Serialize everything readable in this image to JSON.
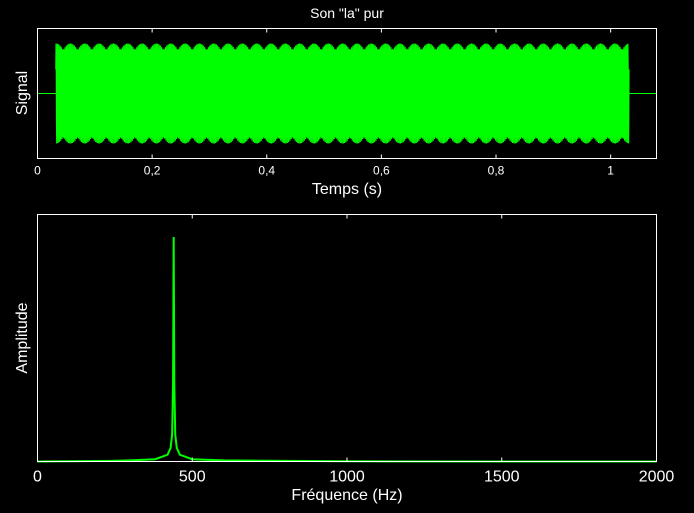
{
  "chart_data": [
    {
      "type": "line",
      "title": "Son \"la\" pur",
      "xlabel": "Temps (s)",
      "ylabel": "Signal",
      "xlim": [
        0,
        1.08
      ],
      "ylim": [
        -1.3,
        1.3
      ],
      "xticks": [
        0,
        0.2,
        0.4,
        0.6,
        0.8,
        1
      ],
      "xtick_labels": [
        "0",
        "0,2",
        "0,4",
        "0,6",
        "0,8",
        "1"
      ],
      "grid": false,
      "line_color": "#00ff00",
      "series": [
        {
          "frequency_hz": 440,
          "amplitude": 1,
          "start_s": 0.032,
          "end_s": 1.032,
          "x": [
            0,
            0.032,
            0.032,
            1.032,
            1.032,
            1.08
          ],
          "y": [
            0,
            0,
            1,
            1,
            0,
            0
          ]
        }
      ]
    },
    {
      "type": "line",
      "title": "",
      "xlabel": "Fréquence (Hz)",
      "ylabel": "Amplitude",
      "xlim": [
        0,
        2000
      ],
      "ylim": [
        0,
        1.1
      ],
      "xticks": [
        0,
        500,
        1000,
        1500,
        2000
      ],
      "xtick_labels": [
        "0",
        "500",
        "1000",
        "1500",
        "2000"
      ],
      "grid": false,
      "line_color": "#00ff00",
      "series": [
        {
          "x": [
            0,
            240,
            300,
            380,
            420,
            430,
            435,
            438,
            440,
            442,
            445,
            450,
            460,
            500,
            600,
            800,
            1000,
            1500,
            2000
          ],
          "y": [
            0,
            0.003,
            0.005,
            0.01,
            0.03,
            0.06,
            0.12,
            0.35,
            1,
            0.35,
            0.12,
            0.06,
            0.03,
            0.01,
            0.005,
            0.003,
            0.001,
            0,
            0
          ]
        }
      ]
    }
  ]
}
